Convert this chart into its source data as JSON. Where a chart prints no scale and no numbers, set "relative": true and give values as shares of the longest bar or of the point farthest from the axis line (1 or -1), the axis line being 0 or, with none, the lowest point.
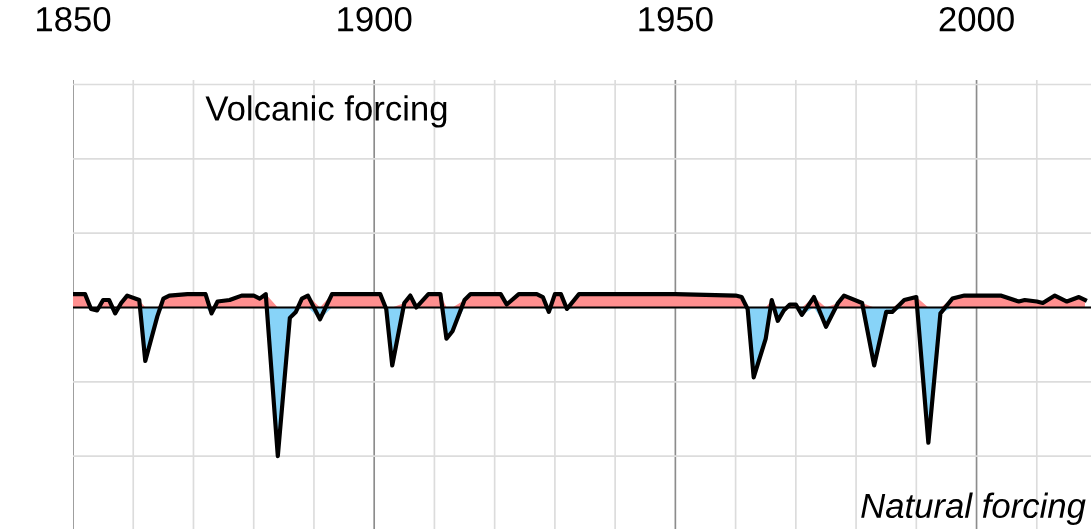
{
  "chart_data": {
    "type": "area",
    "title": "Volcanic forcing",
    "annotations": [
      "Natural forcing"
    ],
    "relative": true,
    "x": [
      1850,
      1852,
      1853,
      1854,
      1855,
      1856,
      1857,
      1858,
      1859,
      1861,
      1862,
      1864,
      1865,
      1866,
      1869,
      1872,
      1873,
      1874,
      1876,
      1878,
      1880,
      1881,
      1882,
      1884,
      1886,
      1887,
      1888,
      1889,
      1891,
      1893,
      1901,
      1902,
      1903,
      1905,
      1906,
      1907,
      1909,
      1911,
      1912,
      1913,
      1915,
      1916,
      1921,
      1922,
      1924,
      1927,
      1928,
      1929,
      1930,
      1931,
      1932,
      1934,
      1950,
      1960,
      1961,
      1962,
      1963,
      1965,
      1966,
      1967,
      1968,
      1969,
      1970,
      1971,
      1973,
      1975,
      1977,
      1978,
      1981,
      1983,
      1985,
      1986,
      1988,
      1990,
      1992,
      1994,
      1996,
      1998,
      2004,
      2007,
      2008,
      2010,
      2011,
      2013,
      2015,
      2017,
      2018
    ],
    "series": [
      {
        "color": "#ff8f8f",
        "values": [
          0.09,
          0.09,
          0,
          0,
          0.05,
          0.05,
          0,
          0.03,
          0.08,
          0.05,
          0,
          0,
          0.06,
          0.08,
          0.09,
          0.09,
          0,
          0.04,
          0.05,
          0.08,
          0.08,
          0.06,
          0.09,
          0,
          0,
          0,
          0.06,
          0.08,
          0,
          0.09,
          0.09,
          0,
          0,
          0.03,
          0.08,
          0,
          0.09,
          0.09,
          0,
          0,
          0.05,
          0.09,
          0.09,
          0.02,
          0.09,
          0.09,
          0.07,
          0,
          0.09,
          0.09,
          0,
          0.09,
          0.09,
          0.08,
          0.07,
          0,
          0,
          0,
          0.05,
          0,
          0,
          0.02,
          0.02,
          0,
          0.07,
          0,
          0.03,
          0.08,
          0.03,
          0,
          0,
          0,
          0.05,
          0.07,
          0,
          0,
          0.06,
          0.08,
          0.08,
          0.04,
          0.05,
          0.04,
          0.03,
          0.08,
          0.04,
          0.07,
          0.05
        ]
      },
      {
        "color": "#87d3f8",
        "values": [
          0,
          0,
          -0.01,
          -0.02,
          0,
          0,
          -0.04,
          0,
          0,
          0,
          -0.36,
          -0.06,
          0,
          0,
          0,
          0,
          -0.04,
          0,
          0,
          0,
          0,
          0,
          0,
          -1.0,
          -0.07,
          -0.03,
          0,
          0,
          -0.08,
          0,
          0,
          -0.01,
          -0.39,
          0,
          0,
          0,
          0,
          0,
          -0.21,
          -0.16,
          0,
          0,
          0,
          0,
          0,
          0,
          0,
          -0.03,
          0,
          0,
          -0.01,
          0,
          0,
          0,
          0,
          -0.01,
          -0.47,
          -0.21,
          0,
          -0.09,
          -0.02,
          0,
          0,
          -0.05,
          0,
          -0.13,
          0,
          0,
          0,
          -0.39,
          -0.03,
          -0.03,
          0,
          0,
          -0.91,
          -0.04,
          0,
          0,
          0,
          0,
          0,
          0,
          0,
          0,
          0,
          0,
          0
        ]
      },
      {
        "type": "line",
        "color": "#000000",
        "values": [
          0.09,
          0.09,
          -0.01,
          -0.02,
          0.05,
          0.05,
          -0.04,
          0.03,
          0.08,
          0.05,
          -0.36,
          -0.06,
          0.06,
          0.08,
          0.09,
          0.09,
          -0.04,
          0.04,
          0.05,
          0.08,
          0.08,
          0.06,
          0.09,
          -1.0,
          -0.07,
          -0.03,
          0.06,
          0.08,
          -0.08,
          0.09,
          0.09,
          -0.01,
          -0.39,
          0.03,
          0.08,
          0.0,
          0.09,
          0.09,
          -0.21,
          -0.16,
          0.05,
          0.09,
          0.09,
          0.02,
          0.09,
          0.09,
          0.07,
          -0.03,
          0.09,
          0.09,
          -0.01,
          0.09,
          0.09,
          0.08,
          0.07,
          -0.01,
          -0.47,
          -0.21,
          0.05,
          -0.09,
          -0.02,
          0.02,
          0.02,
          -0.05,
          0.07,
          -0.13,
          0.03,
          0.08,
          0.03,
          -0.39,
          -0.03,
          -0.03,
          0.05,
          0.07,
          -0.91,
          -0.04,
          0.06,
          0.08,
          0.08,
          0.04,
          0.05,
          0.04,
          0.03,
          0.08,
          0.04,
          0.07,
          0.05
        ]
      }
    ],
    "xlim": [
      1850,
      2019
    ],
    "xticks": [
      1850,
      1900,
      1950,
      2000
    ],
    "grid": true
  }
}
